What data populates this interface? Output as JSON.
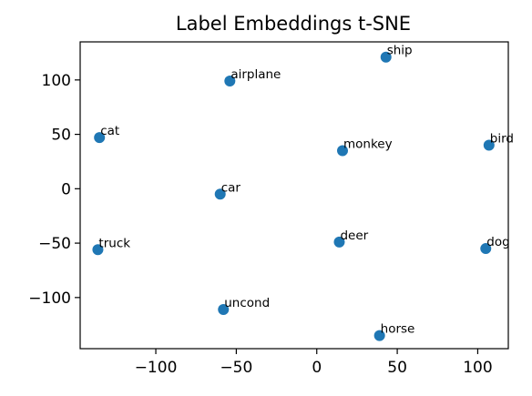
{
  "chart_data": {
    "type": "scatter",
    "title": "Label Embeddings t-SNE",
    "xlabel": "",
    "ylabel": "",
    "xlim": [
      -147,
      119
    ],
    "ylim": [
      -147,
      135
    ],
    "xticks": [
      -100,
      -50,
      0,
      50,
      100
    ],
    "yticks": [
      100,
      50,
      0,
      -50,
      -100
    ],
    "xtick_labels": [
      "−100",
      "−50",
      "0",
      "50",
      "100"
    ],
    "ytick_labels": [
      "100",
      "50",
      "0",
      "−50",
      "−100"
    ],
    "grid": false,
    "marker_color": "#1f77b4",
    "points": [
      {
        "label": "airplane",
        "x": -54,
        "y": 99
      },
      {
        "label": "ship",
        "x": 43,
        "y": 121
      },
      {
        "label": "cat",
        "x": -135,
        "y": 47
      },
      {
        "label": "monkey",
        "x": 16,
        "y": 35
      },
      {
        "label": "bird",
        "x": 107,
        "y": 40
      },
      {
        "label": "car",
        "x": -60,
        "y": -5
      },
      {
        "label": "truck",
        "x": -136,
        "y": -56
      },
      {
        "label": "deer",
        "x": 14,
        "y": -49
      },
      {
        "label": "dog",
        "x": 105,
        "y": -55
      },
      {
        "label": "uncond",
        "x": -58,
        "y": -111
      },
      {
        "label": "horse",
        "x": 39,
        "y": -135
      }
    ]
  }
}
